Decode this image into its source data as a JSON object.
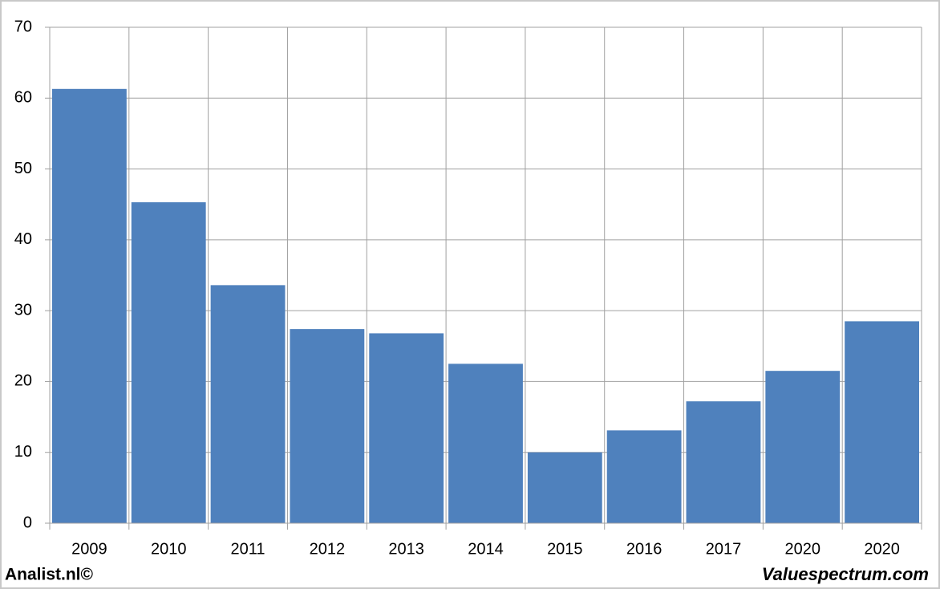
{
  "chart_data": {
    "type": "bar",
    "categories": [
      "2009",
      "2010",
      "2011",
      "2012",
      "2013",
      "2014",
      "2015",
      "2016",
      "2017",
      "2020",
      "2020"
    ],
    "values": [
      61.3,
      45.3,
      33.6,
      27.4,
      26.8,
      22.5,
      10.0,
      13.1,
      17.2,
      21.5,
      28.5
    ],
    "color": "#4f81bd",
    "ylim": [
      0,
      70
    ],
    "yticks": [
      0,
      10,
      20,
      30,
      40,
      50,
      60,
      70
    ],
    "grid": true,
    "source_left": "Analist.nl©",
    "source_right": "Valuespectrum.com"
  }
}
